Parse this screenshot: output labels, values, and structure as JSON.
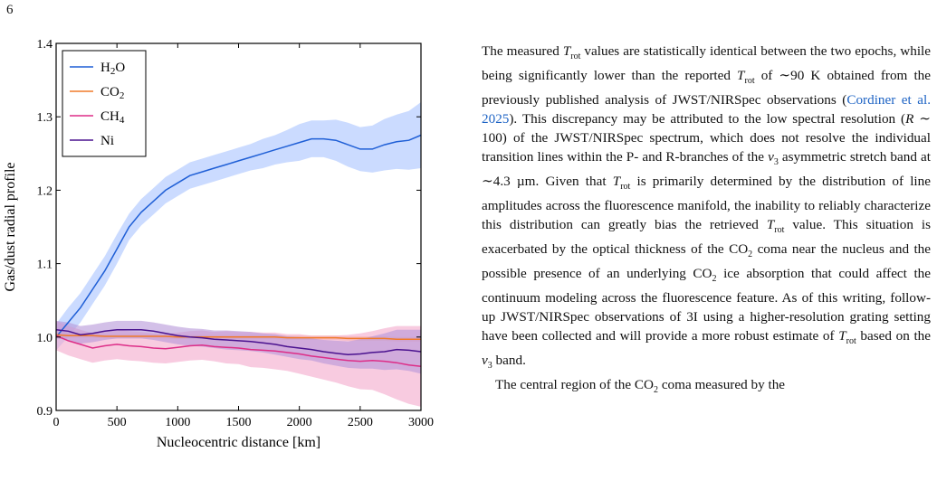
{
  "page_number": "6",
  "chart_data": {
    "type": "line",
    "xlabel": "Nucleocentric distance [km]",
    "ylabel": "Gas/dust radial profile",
    "xlim": [
      0,
      3000
    ],
    "ylim": [
      0.9,
      1.4
    ],
    "xticks": [
      "0",
      "500",
      "1000",
      "1500",
      "2000",
      "2500",
      "3000"
    ],
    "yticks": [
      "0.9",
      "1.0",
      "1.1",
      "1.2",
      "1.3",
      "1.4"
    ],
    "grid": false,
    "legend_position": "top-left",
    "x": [
      0,
      100,
      200,
      300,
      400,
      500,
      600,
      700,
      800,
      900,
      1000,
      1100,
      1200,
      1300,
      1400,
      1500,
      1600,
      1700,
      1800,
      1900,
      2000,
      2100,
      2200,
      2300,
      2400,
      2500,
      2600,
      2700,
      2800,
      2900,
      3000
    ],
    "series": [
      {
        "name": "H2O",
        "color": "#1f5fd6",
        "band_color": "#a9c3ff",
        "values": [
          1.0,
          1.02,
          1.04,
          1.065,
          1.09,
          1.12,
          1.15,
          1.17,
          1.185,
          1.2,
          1.21,
          1.22,
          1.225,
          1.23,
          1.235,
          1.24,
          1.245,
          1.25,
          1.255,
          1.26,
          1.265,
          1.27,
          1.27,
          1.268,
          1.262,
          1.256,
          1.256,
          1.262,
          1.266,
          1.268,
          1.275
        ],
        "band": [
          0.018,
          0.02,
          0.02,
          0.02,
          0.02,
          0.02,
          0.018,
          0.018,
          0.018,
          0.018,
          0.018,
          0.018,
          0.018,
          0.018,
          0.018,
          0.018,
          0.018,
          0.02,
          0.02,
          0.022,
          0.025,
          0.025,
          0.025,
          0.028,
          0.03,
          0.03,
          0.032,
          0.035,
          0.037,
          0.04,
          0.045
        ]
      },
      {
        "name": "CO2",
        "color": "#f07a2a",
        "band_color": "#f7c08f",
        "values": [
          1.003,
          1.002,
          1.002,
          1.002,
          1.001,
          1.001,
          1.001,
          1.001,
          1.001,
          1.001,
          1.0,
          1.0,
          1.0,
          1.0,
          1.0,
          1.0,
          1.0,
          1.0,
          1.0,
          0.999,
          0.999,
          0.999,
          0.999,
          0.999,
          0.998,
          0.998,
          0.998,
          0.998,
          0.997,
          0.997,
          0.997
        ],
        "band": [
          0.003,
          0.003,
          0.003,
          0.003,
          0.003,
          0.003,
          0.003,
          0.003,
          0.003,
          0.003,
          0.003,
          0.003,
          0.003,
          0.003,
          0.003,
          0.003,
          0.003,
          0.003,
          0.003,
          0.003,
          0.003,
          0.003,
          0.003,
          0.003,
          0.003,
          0.003,
          0.003,
          0.003,
          0.003,
          0.003,
          0.003
        ]
      },
      {
        "name": "CH4",
        "color": "#dd2d87",
        "band_color": "#f4a9cc",
        "values": [
          1.002,
          0.995,
          0.99,
          0.985,
          0.988,
          0.99,
          0.988,
          0.987,
          0.985,
          0.984,
          0.986,
          0.988,
          0.989,
          0.987,
          0.986,
          0.985,
          0.983,
          0.982,
          0.981,
          0.979,
          0.977,
          0.974,
          0.972,
          0.97,
          0.968,
          0.967,
          0.968,
          0.967,
          0.965,
          0.962,
          0.96
        ],
        "band": [
          0.02,
          0.02,
          0.02,
          0.02,
          0.02,
          0.02,
          0.02,
          0.02,
          0.02,
          0.02,
          0.02,
          0.02,
          0.02,
          0.02,
          0.022,
          0.022,
          0.024,
          0.024,
          0.025,
          0.025,
          0.027,
          0.028,
          0.03,
          0.032,
          0.035,
          0.038,
          0.04,
          0.045,
          0.05,
          0.053,
          0.055
        ]
      },
      {
        "name": "Ni",
        "color": "#4a128f",
        "band_color": "#b596d8",
        "values": [
          1.01,
          1.008,
          1.003,
          1.005,
          1.008,
          1.01,
          1.01,
          1.01,
          1.008,
          1.005,
          1.002,
          1.0,
          0.999,
          0.997,
          0.996,
          0.995,
          0.994,
          0.992,
          0.99,
          0.987,
          0.985,
          0.983,
          0.98,
          0.978,
          0.976,
          0.977,
          0.979,
          0.98,
          0.983,
          0.982,
          0.98
        ],
        "band": [
          0.012,
          0.012,
          0.012,
          0.012,
          0.012,
          0.012,
          0.012,
          0.012,
          0.012,
          0.012,
          0.012,
          0.012,
          0.012,
          0.012,
          0.013,
          0.013,
          0.013,
          0.013,
          0.014,
          0.014,
          0.015,
          0.015,
          0.016,
          0.017,
          0.018,
          0.02,
          0.022,
          0.025,
          0.027,
          0.028,
          0.03
        ]
      }
    ]
  },
  "paragraphs": [
    {
      "segments": [
        {
          "t": "The measured "
        },
        {
          "t": "T",
          "c": "it"
        },
        {
          "t": "rot",
          "sub": true
        },
        {
          "t": " values are statistically identical between the two epochs, while being significantly lower than the reported "
        },
        {
          "t": "T",
          "c": "it"
        },
        {
          "t": "rot",
          "sub": true
        },
        {
          "t": " of ∼90 K obtained from the previously published analysis of JWST/NIRSpec observations ("
        },
        {
          "t": "Cordiner et al. 2025",
          "c": "cite"
        },
        {
          "t": "). This discrepancy may be attributed to the low spectral resolution ("
        },
        {
          "t": "R",
          "c": "it"
        },
        {
          "t": " ∼ 100) of the JWST/NIRSpec spectrum, which does not resolve the individual transition lines within the P- and R-branches of the "
        },
        {
          "t": "ν",
          "c": "it"
        },
        {
          "t": "3",
          "sub": true
        },
        {
          "t": " asymmetric stretch band at ∼4.3 µm. Given that "
        },
        {
          "t": "T",
          "c": "it"
        },
        {
          "t": "rot",
          "sub": true
        },
        {
          "t": " is primarily determined by the distribution of line amplitudes across the fluorescence manifold, the inability to reliably characterize this distribution can greatly bias the retrieved "
        },
        {
          "t": "T",
          "c": "it"
        },
        {
          "t": "rot",
          "sub": true
        },
        {
          "t": " value. This situation is exacerbated by the optical thickness of the CO"
        },
        {
          "t": "2",
          "sub": true
        },
        {
          "t": " coma near the nucleus and the possible presence of an underlying CO"
        },
        {
          "t": "2",
          "sub": true
        },
        {
          "t": " ice absorption that could affect the continuum modeling across the fluorescence feature. As of this writing, follow-up JWST/NIRSpec observations of 3I using a higher-resolution grating setting have been collected and will provide a more robust estimate of "
        },
        {
          "t": "T",
          "c": "it"
        },
        {
          "t": "rot",
          "sub": true
        },
        {
          "t": " based on the "
        },
        {
          "t": "ν",
          "c": "it"
        },
        {
          "t": "3",
          "sub": true
        },
        {
          "t": " band."
        }
      ]
    },
    {
      "segments": [
        {
          "t": "The central region of the CO"
        },
        {
          "t": "2",
          "sub": true
        },
        {
          "t": " coma measured by the"
        }
      ]
    }
  ]
}
